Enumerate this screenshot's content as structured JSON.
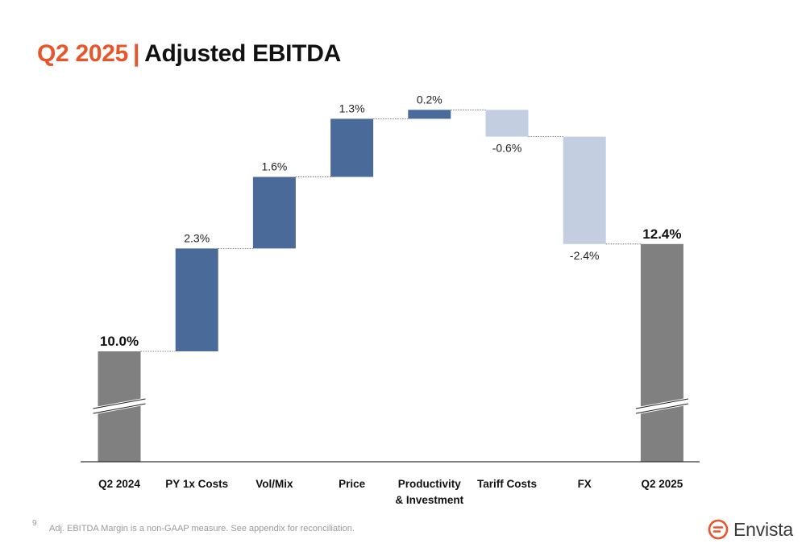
{
  "title": {
    "accent": "Q2 2025",
    "separator": "|",
    "main": "Adjusted EBITDA"
  },
  "footer": {
    "page_number": "9",
    "note": "Adj. EBITDA Margin is a non-GAAP measure.  See appendix for reconciliation."
  },
  "logo": {
    "text": "Envista"
  },
  "colors": {
    "total": "#808080",
    "increase": "#4a6a9a",
    "decrease": "#c3cfe0",
    "connector": "#555555",
    "accent": "#e8552b"
  },
  "chart_data": {
    "type": "waterfall",
    "title": "",
    "start": {
      "category": "Q2 2024",
      "value": 10.0,
      "label": "10.0%"
    },
    "steps": [
      {
        "category": "PY 1x Costs",
        "value": 2.3,
        "label": "2.3%"
      },
      {
        "category": "Vol/Mix",
        "value": 1.6,
        "label": "1.6%"
      },
      {
        "category": "Price",
        "value": 1.3,
        "label": "1.3%"
      },
      {
        "category": [
          "Productivity",
          "& Investment"
        ],
        "value": 0.2,
        "label": "0.2%"
      },
      {
        "category": "Tariff Costs",
        "value": -0.6,
        "label": "-0.6%"
      },
      {
        "category": "FX",
        "value": -2.4,
        "label": "-2.4%"
      }
    ],
    "end": {
      "category": "Q2 2025",
      "value": 12.4,
      "label": "12.4%"
    },
    "axis_break": true,
    "y_axis_visible": false,
    "grid": false
  }
}
